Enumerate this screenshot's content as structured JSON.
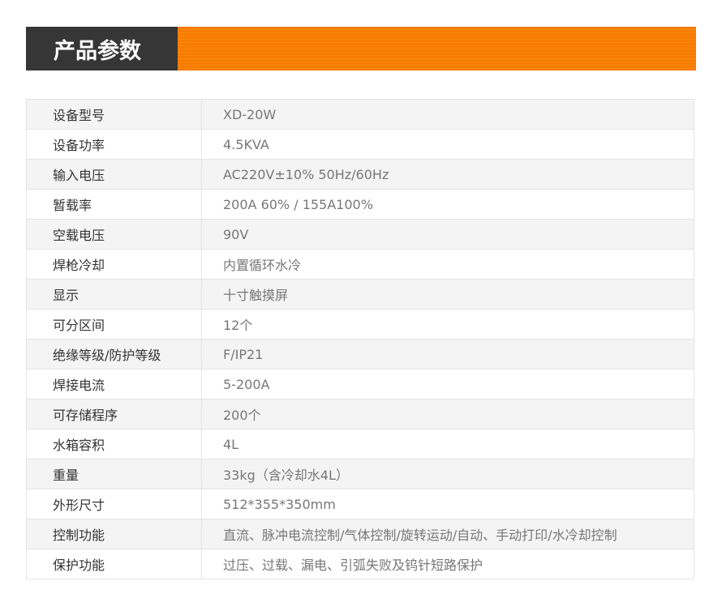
{
  "header": {
    "title": "产品参数",
    "accent_color": "#f77c00",
    "dark_color": "#363636"
  },
  "rows": [
    {
      "label": "设备型号",
      "value": "XD-20W"
    },
    {
      "label": "设备功率",
      "value": "4.5KVA"
    },
    {
      "label": "输入电压",
      "value": "AC220V±10%  50Hz/60Hz"
    },
    {
      "label": "暂载率",
      "value": "200A 60% / 155A100%"
    },
    {
      "label": "空载电压",
      "value": "90V"
    },
    {
      "label": "焊枪冷却",
      "value": "内置循环水冷"
    },
    {
      "label": "显示",
      "value": "十寸触摸屏"
    },
    {
      "label": "可分区间",
      "value": "12个"
    },
    {
      "label": "绝缘等级/防护等级",
      "value": "F/IP21"
    },
    {
      "label": "焊接电流",
      "value": "5-200A"
    },
    {
      "label": "可存储程序",
      "value": "200个"
    },
    {
      "label": "水箱容积",
      "value": "4L"
    },
    {
      "label": "重量",
      "value": "33kg（含冷却水4L）"
    },
    {
      "label": "外形尺寸",
      "value": "512*355*350mm"
    },
    {
      "label": "控制功能",
      "value": "直流、脉冲电流控制/气体控制/旋转运动/自动、手动打印/水冷却控制"
    },
    {
      "label": "保护功能",
      "value": "过压、过载、漏电、引弧失败及钨针短路保护"
    }
  ]
}
